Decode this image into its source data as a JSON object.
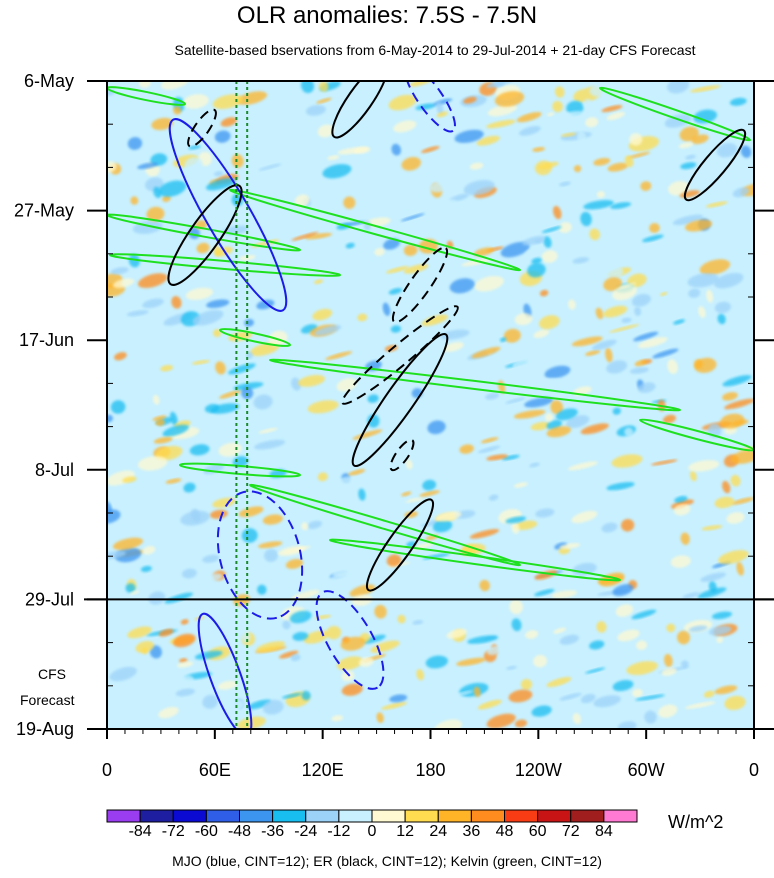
{
  "chart_data": {
    "type": "heatmap",
    "title": "OLR anomalies: 7.5S - 7.5N",
    "subtitle": "Satellite-based bservations from 6-May-2014 to 29-Jul-2014 + 21-day CFS Forecast",
    "x_tick_labels": [
      "0",
      "60E",
      "120E",
      "180",
      "120W",
      "60W",
      "0"
    ],
    "x_ticks_deg": [
      0,
      60,
      120,
      180,
      240,
      300,
      360
    ],
    "xlim": [
      0,
      360
    ],
    "y_tick_labels": [
      "6-May",
      "27-May",
      "17-Jun",
      "8-Jul",
      "29-Jul",
      "19-Aug"
    ],
    "y_ticks_day": [
      0,
      21,
      42,
      63,
      84,
      105
    ],
    "ylim": [
      0,
      105
    ],
    "observation_end": "29-Jul",
    "forecast_label": [
      "CFS",
      "Forecast"
    ],
    "forecast_end": "19-Aug",
    "colorbar": {
      "levels": [
        "-84",
        "-72",
        "-60",
        "-48",
        "-36",
        "-24",
        "-12",
        "0",
        "12",
        "24",
        "36",
        "48",
        "60",
        "72",
        "84"
      ],
      "colors": [
        "#9a3cf0",
        "#1e1ea0",
        "#0a0ad2",
        "#2f5fe8",
        "#3c96f0",
        "#19bef0",
        "#9cd2f8",
        "#c8f0ff",
        "#fffad2",
        "#ffdc50",
        "#ffb428",
        "#ff8c1e",
        "#fa3c14",
        "#c81414",
        "#a01e1e",
        "#ff7ad2"
      ],
      "units": "W/m^2"
    },
    "contour_note": "MJO (blue, CINT=12); ER (black, CINT=12); Kelvin (green, CINT=12)",
    "series": [
      {
        "name": "MJO",
        "color": "#1c1ce6",
        "cint": 12
      },
      {
        "name": "ER",
        "color": "#000000",
        "cint": 12
      },
      {
        "name": "Kelvin",
        "color": "#1fe01f",
        "cint": 12
      }
    ],
    "reference_lines_lon": [
      72,
      78
    ],
    "reference_line_color": "#1a8a2a"
  }
}
